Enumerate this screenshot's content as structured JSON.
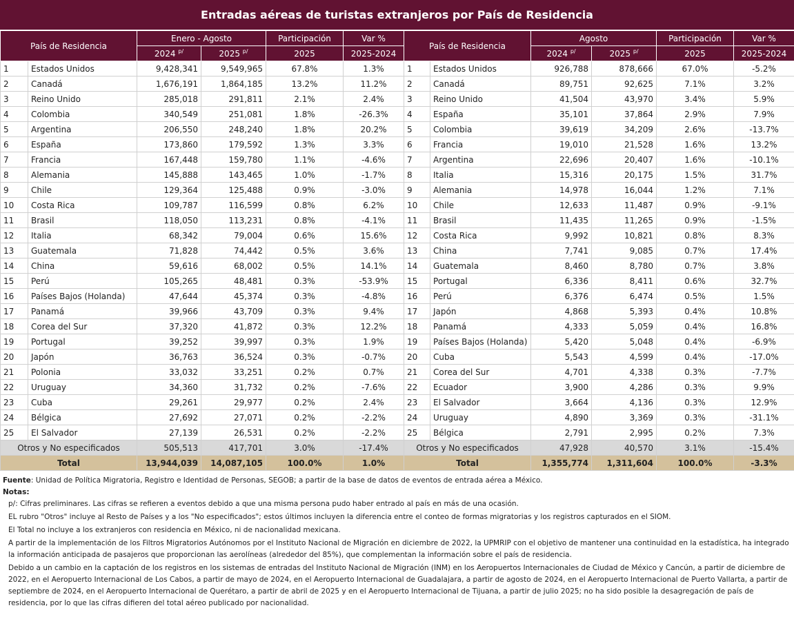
{
  "header": {
    "title": "Entradas aéreas de turistas extranjeros por País de Residencia"
  },
  "table": {
    "columns": {
      "country": "País de Residencia",
      "participation": "Participación",
      "var": "Var %",
      "year_2024": "2024",
      "year_2025": "2025",
      "prelim": "p/",
      "part_year": "2025",
      "var_years": "2025-2024"
    },
    "left": {
      "period": "Enero - Agosto",
      "rows": [
        [
          "1",
          "Estados Unidos",
          "9,428,341",
          "9,549,965",
          "67.8%",
          "1.3%"
        ],
        [
          "2",
          "Canadá",
          "1,676,191",
          "1,864,185",
          "13.2%",
          "11.2%"
        ],
        [
          "3",
          "Reino Unido",
          "285,018",
          "291,811",
          "2.1%",
          "2.4%"
        ],
        [
          "4",
          "Colombia",
          "340,549",
          "251,081",
          "1.8%",
          "-26.3%"
        ],
        [
          "5",
          "Argentina",
          "206,550",
          "248,240",
          "1.8%",
          "20.2%"
        ],
        [
          "6",
          "España",
          "173,860",
          "179,592",
          "1.3%",
          "3.3%"
        ],
        [
          "7",
          "Francia",
          "167,448",
          "159,780",
          "1.1%",
          "-4.6%"
        ],
        [
          "8",
          "Alemania",
          "145,888",
          "143,465",
          "1.0%",
          "-1.7%"
        ],
        [
          "9",
          "Chile",
          "129,364",
          "125,488",
          "0.9%",
          "-3.0%"
        ],
        [
          "10",
          "Costa Rica",
          "109,787",
          "116,599",
          "0.8%",
          "6.2%"
        ],
        [
          "11",
          "Brasil",
          "118,050",
          "113,231",
          "0.8%",
          "-4.1%"
        ],
        [
          "12",
          "Italia",
          "68,342",
          "79,004",
          "0.6%",
          "15.6%"
        ],
        [
          "13",
          "Guatemala",
          "71,828",
          "74,442",
          "0.5%",
          "3.6%"
        ],
        [
          "14",
          "China",
          "59,616",
          "68,002",
          "0.5%",
          "14.1%"
        ],
        [
          "15",
          "Perú",
          "105,265",
          "48,481",
          "0.3%",
          "-53.9%"
        ],
        [
          "16",
          "Países Bajos (Holanda)",
          "47,644",
          "45,374",
          "0.3%",
          "-4.8%"
        ],
        [
          "17",
          "Panamá",
          "39,966",
          "43,709",
          "0.3%",
          "9.4%"
        ],
        [
          "18",
          "Corea del Sur",
          "37,320",
          "41,872",
          "0.3%",
          "12.2%"
        ],
        [
          "19",
          "Portugal",
          "39,252",
          "39,997",
          "0.3%",
          "1.9%"
        ],
        [
          "20",
          "Japón",
          "36,763",
          "36,524",
          "0.3%",
          "-0.7%"
        ],
        [
          "21",
          "Polonia",
          "33,032",
          "33,251",
          "0.2%",
          "0.7%"
        ],
        [
          "22",
          "Uruguay",
          "34,360",
          "31,732",
          "0.2%",
          "-7.6%"
        ],
        [
          "23",
          "Cuba",
          "29,261",
          "29,977",
          "0.2%",
          "2.4%"
        ],
        [
          "24",
          "Bélgica",
          "27,692",
          "27,071",
          "0.2%",
          "-2.2%"
        ],
        [
          "25",
          "El Salvador",
          "27,139",
          "26,531",
          "0.2%",
          "-2.2%"
        ]
      ],
      "other": [
        "Otros y No especificados",
        "505,513",
        "417,701",
        "3.0%",
        "-17.4%"
      ],
      "total": [
        "Total",
        "13,944,039",
        "14,087,105",
        "100.0%",
        "1.0%"
      ]
    },
    "right": {
      "period": "Agosto",
      "rows": [
        [
          "1",
          "Estados Unidos",
          "926,788",
          "878,666",
          "67.0%",
          "-5.2%"
        ],
        [
          "2",
          "Canadá",
          "89,751",
          "92,625",
          "7.1%",
          "3.2%"
        ],
        [
          "3",
          "Reino Unido",
          "41,504",
          "43,970",
          "3.4%",
          "5.9%"
        ],
        [
          "4",
          "España",
          "35,101",
          "37,864",
          "2.9%",
          "7.9%"
        ],
        [
          "5",
          "Colombia",
          "39,619",
          "34,209",
          "2.6%",
          "-13.7%"
        ],
        [
          "6",
          "Francia",
          "19,010",
          "21,528",
          "1.6%",
          "13.2%"
        ],
        [
          "7",
          "Argentina",
          "22,696",
          "20,407",
          "1.6%",
          "-10.1%"
        ],
        [
          "8",
          "Italia",
          "15,316",
          "20,175",
          "1.5%",
          "31.7%"
        ],
        [
          "9",
          "Alemania",
          "14,978",
          "16,044",
          "1.2%",
          "7.1%"
        ],
        [
          "10",
          "Chile",
          "12,633",
          "11,487",
          "0.9%",
          "-9.1%"
        ],
        [
          "11",
          "Brasil",
          "11,435",
          "11,265",
          "0.9%",
          "-1.5%"
        ],
        [
          "12",
          "Costa Rica",
          "9,992",
          "10,821",
          "0.8%",
          "8.3%"
        ],
        [
          "13",
          "China",
          "7,741",
          "9,085",
          "0.7%",
          "17.4%"
        ],
        [
          "14",
          "Guatemala",
          "8,460",
          "8,780",
          "0.7%",
          "3.8%"
        ],
        [
          "15",
          "Portugal",
          "6,336",
          "8,411",
          "0.6%",
          "32.7%"
        ],
        [
          "16",
          "Perú",
          "6,376",
          "6,474",
          "0.5%",
          "1.5%"
        ],
        [
          "17",
          "Japón",
          "4,868",
          "5,393",
          "0.4%",
          "10.8%"
        ],
        [
          "18",
          "Panamá",
          "4,333",
          "5,059",
          "0.4%",
          "16.8%"
        ],
        [
          "19",
          "Países Bajos (Holanda)",
          "5,420",
          "5,048",
          "0.4%",
          "-6.9%"
        ],
        [
          "20",
          "Cuba",
          "5,543",
          "4,599",
          "0.4%",
          "-17.0%"
        ],
        [
          "21",
          "Corea del Sur",
          "4,701",
          "4,338",
          "0.3%",
          "-7.7%"
        ],
        [
          "22",
          "Ecuador",
          "3,900",
          "4,286",
          "0.3%",
          "9.9%"
        ],
        [
          "23",
          "El Salvador",
          "3,664",
          "4,136",
          "0.3%",
          "12.9%"
        ],
        [
          "24",
          "Uruguay",
          "4,890",
          "3,369",
          "0.3%",
          "-31.1%"
        ],
        [
          "25",
          "Bélgica",
          "2,791",
          "2,995",
          "0.2%",
          "7.3%"
        ]
      ],
      "other": [
        "Otros y No especificados",
        "47,928",
        "40,570",
        "3.1%",
        "-15.4%"
      ],
      "total": [
        "Total",
        "1,355,774",
        "1,311,604",
        "100.0%",
        "-3.3%"
      ]
    }
  },
  "notes": {
    "source_label": "Fuente",
    "source": ": Unidad de Política Migratoria, Registro e Identidad de Personas, SEGOB; a partir de la base de datos de eventos de entrada aérea a México.",
    "notes_label": "Notas:",
    "items": [
      "p/: Cifras preliminares.   Las cifras se refieren a eventos debido a que una misma persona pudo haber entrado al país en más de una ocasión.",
      "EL rubro \"Otros\" incluye al Resto de Países y a los \"No especificados\"; estos últimos incluyen la diferencia entre el conteo de formas migratorias y los registros capturados en el SIOM.",
      "El Total no  incluye a los extranjeros con residencia en México, ni de nacionalidad mexicana.",
      "A partir de la implementación de los Filtros Migratorios Autónomos por el Instituto Nacional de Migración en diciembre de 2022, la UPMRIP con el objetivo de mantener una continuidad en la estadística, ha integrado la información anticipada de pasajeros que proporcionan las aerolíneas (alrededor del 85%), que complementan la información sobre el país de residencia.",
      "Debido a un cambio en la captación de los registros en los sistemas de entradas del Instituto Nacional de Migración (INM) en los Aeropuertos Internacionales de Ciudad de México y Cancún, a partir de diciembre de 2022, en el Aeropuerto Internacional de Los Cabos, a partir de mayo de 2024, en el Aeropuerto Internacional de Guadalajara, a partir de agosto de 2024, en el Aeropuerto Internacional de Puerto Vallarta, a partir de septiembre de 2024, en el Aeropuerto Internacional de Querétaro, a partir de abril de 2025  y en el Aeropuerto Internacional de Tijuana, a partir de julio 2025; no ha sido posible la desagregación de país de residencia, por lo que las cifras difieren del total aéreo publicado por nacionalidad."
    ]
  }
}
